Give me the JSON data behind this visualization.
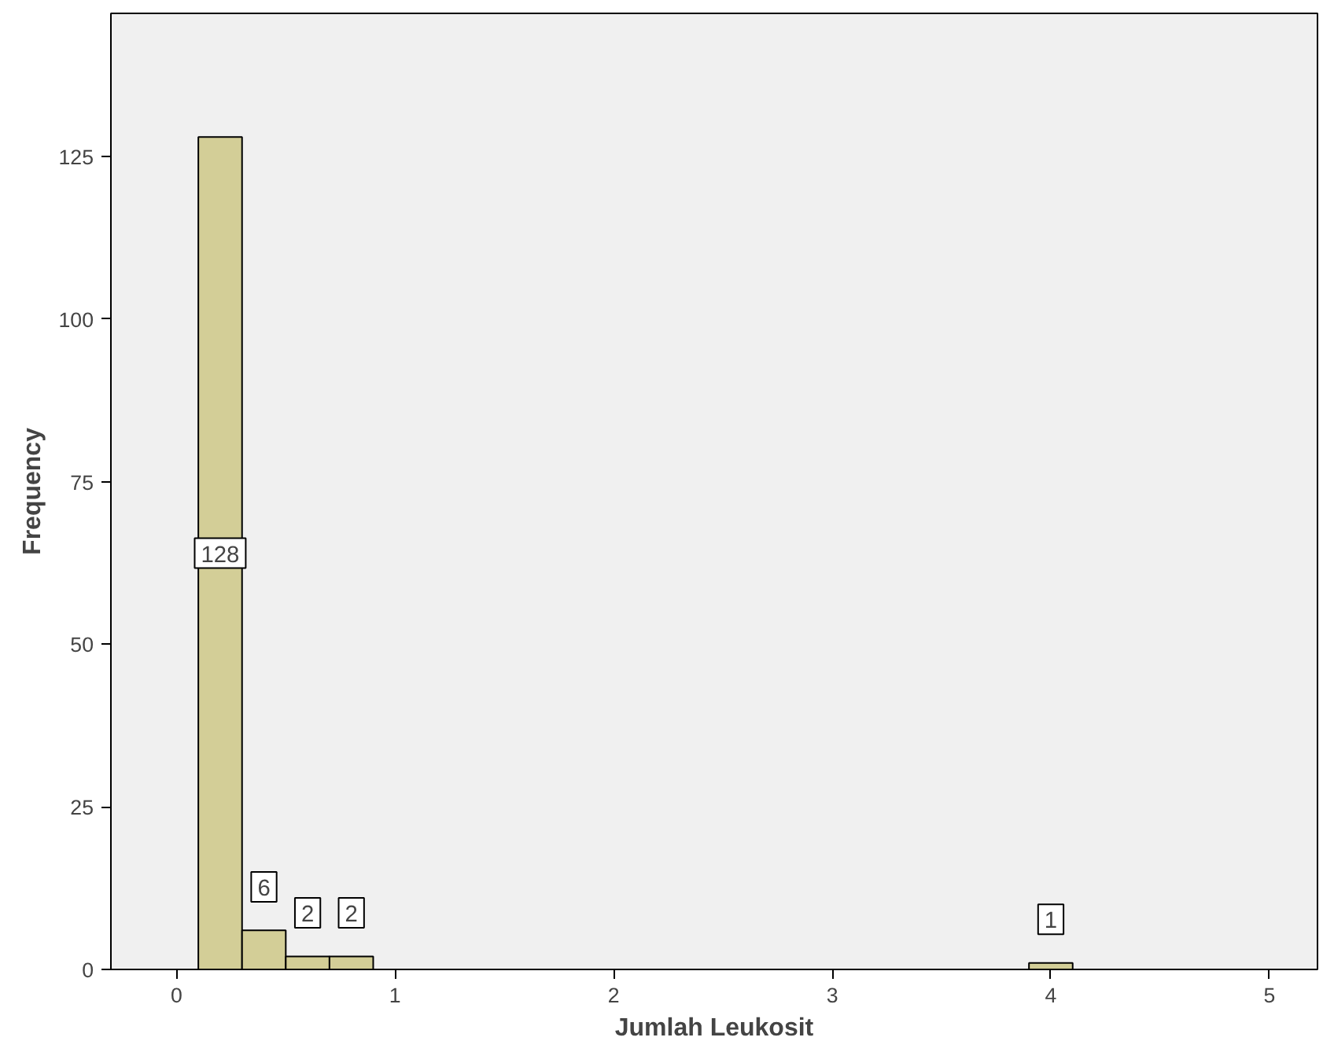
{
  "chart_data": {
    "type": "histogram",
    "xlabel": "Jumlah Leukosit",
    "ylabel": "Frequency",
    "bins": [
      0.1,
      0.3,
      0.5,
      0.7,
      0.9,
      1.1,
      1.3,
      1.5,
      1.7,
      1.9,
      2.1,
      2.3,
      2.5,
      2.7,
      2.9,
      3.1,
      3.3,
      3.5,
      3.7,
      3.9,
      4.1
    ],
    "values": [
      128,
      6,
      2,
      2,
      0,
      0,
      0,
      0,
      0,
      0,
      0,
      0,
      0,
      0,
      0,
      0,
      0,
      0,
      0,
      1
    ],
    "value_labels": [
      "128",
      "6",
      "2",
      "2",
      null,
      null,
      null,
      null,
      null,
      null,
      null,
      null,
      null,
      null,
      null,
      null,
      null,
      null,
      null,
      "1"
    ],
    "color": "#d3ce97",
    "xlim": [
      -0.3,
      5.22
    ],
    "ylim": [
      0,
      147
    ],
    "xticks": [
      0,
      1,
      2,
      3,
      4,
      5
    ],
    "yticks": [
      0,
      25,
      50,
      75,
      100,
      125
    ],
    "grid": false
  }
}
